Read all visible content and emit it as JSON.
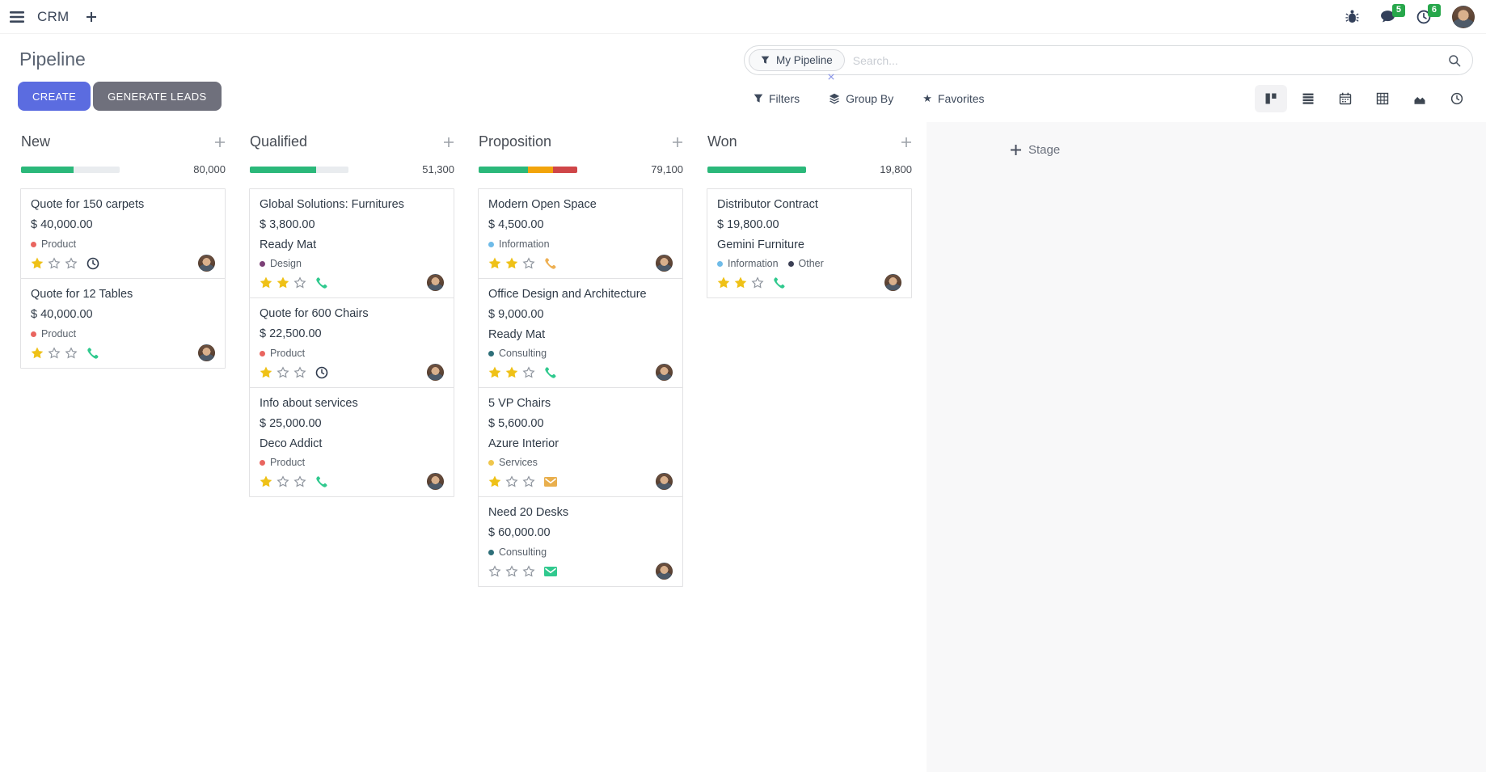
{
  "topbar": {
    "app_name": "CRM",
    "messages_badge": "5",
    "activities_badge": "6"
  },
  "control_panel": {
    "title": "Pipeline",
    "create_label": "CREATE",
    "generate_leads_label": "GENERATE LEADS",
    "search": {
      "facet": "My Pipeline",
      "placeholder": "Search..."
    },
    "filters_label": "Filters",
    "group_by_label": "Group By",
    "favorites_label": "Favorites"
  },
  "kanban": {
    "add_stage_label": "Stage",
    "columns": [
      {
        "name": "New",
        "total": "80,000",
        "progress": [
          {
            "color": "#2bb87a",
            "pct": 53
          }
        ],
        "cards": [
          {
            "title": "Quote for 150 carpets",
            "amount": "$ 40,000.00",
            "partner": null,
            "tags": [
              {
                "label": "Product",
                "color": "#e9655f"
              }
            ],
            "stars": 1,
            "activity": {
              "icon": "clock",
              "color": "#2e3a4d"
            }
          },
          {
            "title": "Quote for 12 Tables",
            "amount": "$ 40,000.00",
            "partner": null,
            "tags": [
              {
                "label": "Product",
                "color": "#e9655f"
              }
            ],
            "stars": 1,
            "activity": {
              "icon": "phone",
              "color": "#30c98e"
            }
          }
        ]
      },
      {
        "name": "Qualified",
        "total": "51,300",
        "progress": [
          {
            "color": "#2bb87a",
            "pct": 67
          }
        ],
        "cards": [
          {
            "title": "Global Solutions: Furnitures",
            "amount": "$ 3,800.00",
            "partner": "Ready Mat",
            "tags": [
              {
                "label": "Design",
                "color": "#7c4077"
              }
            ],
            "stars": 2,
            "activity": {
              "icon": "phone",
              "color": "#30c98e"
            }
          },
          {
            "title": "Quote for 600 Chairs",
            "amount": "$ 22,500.00",
            "partner": null,
            "tags": [
              {
                "label": "Product",
                "color": "#e9655f"
              }
            ],
            "stars": 1,
            "activity": {
              "icon": "clock",
              "color": "#2e3a4d"
            }
          },
          {
            "title": "Info about services",
            "amount": "$ 25,000.00",
            "partner": "Deco Addict",
            "tags": [
              {
                "label": "Product",
                "color": "#e9655f"
              }
            ],
            "stars": 1,
            "activity": {
              "icon": "phone",
              "color": "#30c98e"
            }
          }
        ]
      },
      {
        "name": "Proposition",
        "total": "79,100",
        "progress": [
          {
            "color": "#2bb87a",
            "pct": 50
          },
          {
            "color": "#f2a40b",
            "pct": 25
          },
          {
            "color": "#cf4648",
            "pct": 25
          }
        ],
        "cards": [
          {
            "title": "Modern Open Space",
            "amount": "$ 4,500.00",
            "partner": null,
            "tags": [
              {
                "label": "Information",
                "color": "#6fbbe8"
              }
            ],
            "stars": 2,
            "activity": {
              "icon": "phone",
              "color": "#eeb053"
            }
          },
          {
            "title": "Office Design and Architecture",
            "amount": "$ 9,000.00",
            "partner": "Ready Mat",
            "tags": [
              {
                "label": "Consulting",
                "color": "#2e6f79"
              }
            ],
            "stars": 2,
            "activity": {
              "icon": "phone",
              "color": "#30c98e"
            }
          },
          {
            "title": "5 VP Chairs",
            "amount": "$ 5,600.00",
            "partner": "Azure Interior",
            "tags": [
              {
                "label": "Services",
                "color": "#efc64c"
              }
            ],
            "stars": 1,
            "activity": {
              "icon": "envelope",
              "color": "#e9af4d"
            }
          },
          {
            "title": "Need 20 Desks",
            "amount": "$ 60,000.00",
            "partner": null,
            "tags": [
              {
                "label": "Consulting",
                "color": "#2e6f79"
              }
            ],
            "stars": 0,
            "activity": {
              "icon": "envelope",
              "color": "#30c98e"
            }
          }
        ]
      },
      {
        "name": "Won",
        "total": "19,800",
        "progress": [
          {
            "color": "#2bb87a",
            "pct": 100
          }
        ],
        "cards": [
          {
            "title": "Distributor Contract",
            "amount": "$ 19,800.00",
            "partner": "Gemini Furniture",
            "tags": [
              {
                "label": "Information",
                "color": "#6fbbe8"
              },
              {
                "label": "Other",
                "color": "#3b3f54"
              }
            ],
            "stars": 2,
            "activity": {
              "icon": "phone",
              "color": "#30c98e"
            }
          }
        ]
      }
    ]
  }
}
